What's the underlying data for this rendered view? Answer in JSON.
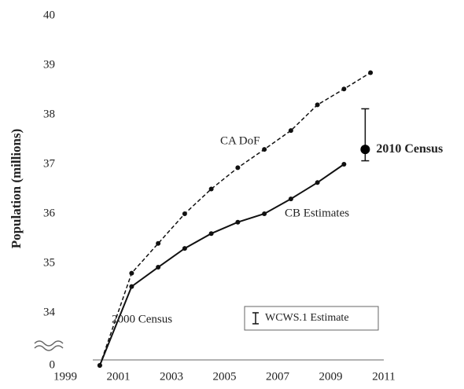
{
  "chart_data": {
    "type": "line",
    "ylabel": "Population (millions)",
    "xlim": [
      1999,
      2011
    ],
    "xticks": [
      1999,
      2001,
      2003,
      2005,
      2007,
      2009,
      2011
    ],
    "ylim": [
      34,
      40
    ],
    "yticks": [
      0,
      34,
      35,
      36,
      37,
      38,
      39,
      40
    ],
    "y_break": [
      0,
      34
    ],
    "series": [
      {
        "name": "CA DoF",
        "color": "#111111",
        "dash": true,
        "x": [
          2000.3,
          2001.5,
          2002.5,
          2003.5,
          2004.5,
          2005.5,
          2006.5,
          2007.5,
          2008.5,
          2009.5,
          2010.5
        ],
        "values": [
          33.9,
          34.8,
          35.4,
          36.0,
          36.5,
          36.93,
          37.3,
          37.68,
          38.2,
          38.52,
          38.85
        ]
      },
      {
        "name": "CB Estimates",
        "color": "#111111",
        "dash": false,
        "x": [
          2000.3,
          2001.5,
          2002.5,
          2003.5,
          2004.5,
          2005.5,
          2006.5,
          2007.5,
          2008.5,
          2009.5
        ],
        "values": [
          33.9,
          34.53,
          34.92,
          35.3,
          35.6,
          35.83,
          36.0,
          36.3,
          36.63,
          37.0
        ]
      }
    ],
    "points": [
      {
        "name": "2010 Census",
        "x": 2010.3,
        "value": 37.3,
        "low": 37.07,
        "high": 38.12
      }
    ],
    "annotations": [
      "2000 Census"
    ],
    "legend": "WCWS.1 Estimate"
  }
}
